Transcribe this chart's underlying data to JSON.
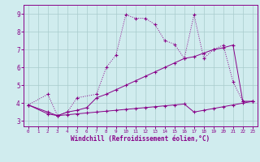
{
  "title": "",
  "xlabel": "Windchill (Refroidissement éolien,°C)",
  "ylabel": "",
  "xlim": [
    -0.5,
    23.5
  ],
  "ylim": [
    2.7,
    9.5
  ],
  "xticks": [
    0,
    1,
    2,
    3,
    4,
    5,
    6,
    7,
    8,
    9,
    10,
    11,
    12,
    13,
    14,
    15,
    16,
    17,
    18,
    19,
    20,
    21,
    22,
    23
  ],
  "yticks": [
    3,
    4,
    5,
    6,
    7,
    8,
    9
  ],
  "background_color": "#d0ecee",
  "grid_color": "#a8cccc",
  "line_color": "#880088",
  "line1_x": [
    0,
    2,
    3,
    4,
    5,
    7,
    8,
    9,
    10,
    11,
    12,
    13,
    14,
    15,
    16,
    17,
    18,
    19,
    20,
    21,
    22,
    23
  ],
  "line1_y": [
    3.9,
    4.5,
    3.3,
    3.5,
    4.3,
    4.5,
    6.0,
    6.7,
    8.95,
    8.75,
    8.75,
    8.4,
    7.5,
    7.3,
    6.5,
    8.95,
    6.5,
    7.0,
    7.25,
    5.2,
    4.1,
    4.1
  ],
  "line2_x": [
    0,
    2,
    3,
    4,
    5,
    6,
    7,
    8,
    9,
    10,
    11,
    12,
    13,
    14,
    15,
    16,
    17,
    18,
    19,
    20,
    21,
    22,
    23
  ],
  "line2_y": [
    3.9,
    3.5,
    3.3,
    3.5,
    3.6,
    3.75,
    4.3,
    4.5,
    4.75,
    5.0,
    5.25,
    5.5,
    5.75,
    6.0,
    6.25,
    6.5,
    6.6,
    6.8,
    7.0,
    7.1,
    7.25,
    4.1,
    4.1
  ],
  "line3_x": [
    0,
    2,
    3,
    4,
    5,
    6,
    7,
    8,
    9,
    10,
    11,
    12,
    13,
    14,
    15,
    16,
    17,
    18,
    19,
    20,
    21,
    22,
    23
  ],
  "line3_y": [
    3.9,
    3.4,
    3.3,
    3.35,
    3.4,
    3.45,
    3.5,
    3.55,
    3.6,
    3.65,
    3.7,
    3.75,
    3.8,
    3.85,
    3.9,
    3.95,
    3.5,
    3.6,
    3.7,
    3.8,
    3.9,
    4.0,
    4.1
  ]
}
